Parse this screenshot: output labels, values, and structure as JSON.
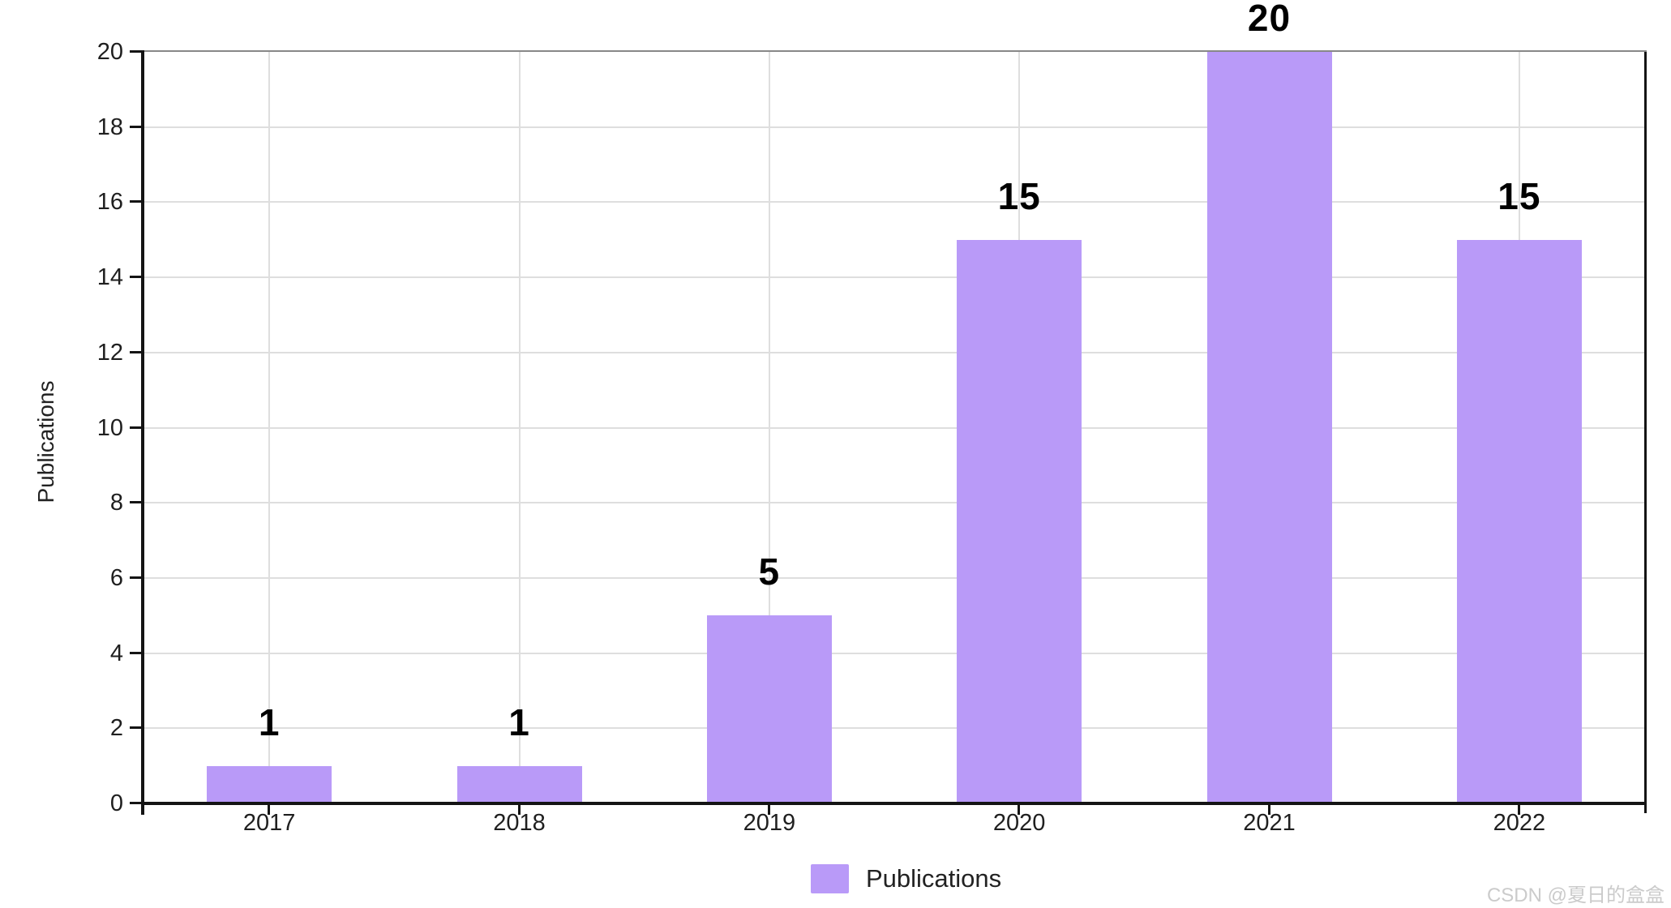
{
  "chart_data": {
    "type": "bar",
    "title": "",
    "categories": [
      "2017",
      "2018",
      "2019",
      "2020",
      "2021",
      "2022"
    ],
    "series": [
      {
        "name": "Publications",
        "values": [
          1,
          1,
          5,
          15,
          20,
          15
        ]
      }
    ],
    "value_labels": [
      "1",
      "1",
      "5",
      "15",
      "20",
      "15"
    ],
    "xlabel": "",
    "ylabel": "Publications",
    "ylim": [
      0,
      20
    ],
    "yticks": [
      0,
      2,
      4,
      6,
      8,
      10,
      12,
      14,
      16,
      18,
      20
    ],
    "grid": true,
    "legend_position": "bottom",
    "bar_color": "#b99af8",
    "gridline_color": "#dedede",
    "axis_color": "#141414"
  },
  "legend": {
    "label": "Publications",
    "swatch_color": "#b99af8"
  },
  "watermark": {
    "text": "CSDN @夏日的盒盒"
  }
}
